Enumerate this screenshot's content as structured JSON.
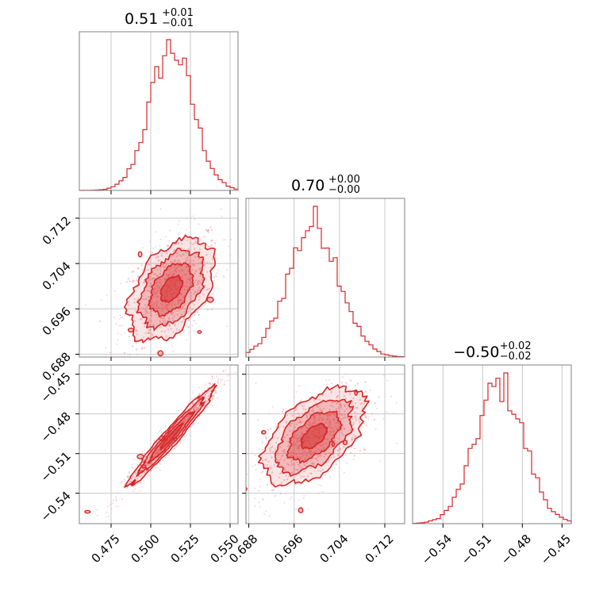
{
  "chart_data": {
    "type": "corner",
    "color": "#d62728",
    "parameters": [
      {
        "title_main": "0.51",
        "title_plus": "+0.01",
        "title_minus": "−0.01",
        "median": 0.513,
        "sigma": 0.0135,
        "range": [
          0.455,
          0.555
        ],
        "ticks": [
          0.475,
          0.5,
          0.525,
          0.55
        ],
        "tick_labels": [
          "0.475",
          "0.500",
          "0.525",
          "0.550"
        ]
      },
      {
        "title_main": "0.70",
        "title_plus": "+0.00",
        "title_minus": "−0.00",
        "median": 0.6995,
        "sigma": 0.0045,
        "range": [
          0.6875,
          0.7155
        ],
        "ticks": [
          0.688,
          0.696,
          0.704,
          0.712
        ],
        "tick_labels": [
          "0.688",
          "0.696",
          "0.704",
          "0.712"
        ]
      },
      {
        "title_main": "−0.50",
        "title_plus": "+0.02",
        "title_minus": "−0.02",
        "median": -0.497,
        "sigma": 0.0185,
        "range": [
          -0.563,
          -0.443
        ],
        "ticks": [
          -0.54,
          -0.51,
          -0.48,
          -0.45
        ],
        "tick_labels": [
          "−0.54",
          "−0.51",
          "−0.48",
          "−0.45"
        ]
      }
    ],
    "correlations": {
      "1-0": 0.45,
      "2-0": 0.97,
      "2-1": 0.55
    },
    "grid": true,
    "contour_levels_sigma": [
      0.5,
      1.0,
      1.5,
      2.0
    ],
    "n_bins": 40
  }
}
